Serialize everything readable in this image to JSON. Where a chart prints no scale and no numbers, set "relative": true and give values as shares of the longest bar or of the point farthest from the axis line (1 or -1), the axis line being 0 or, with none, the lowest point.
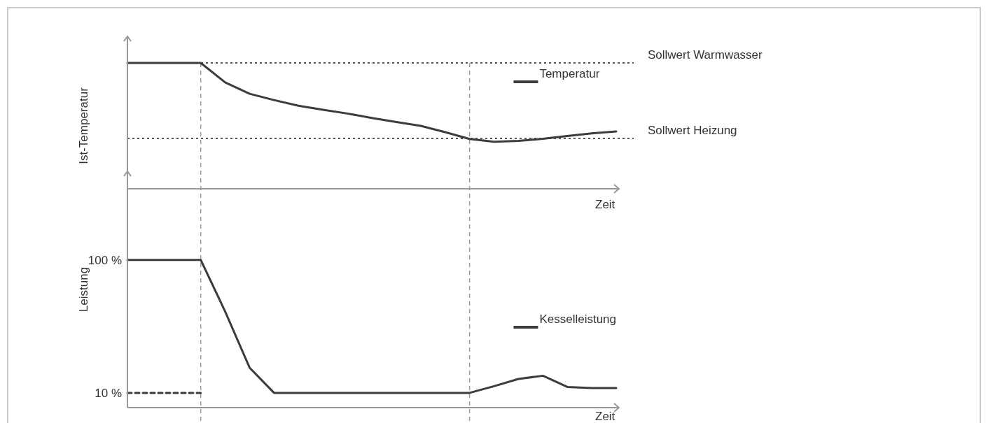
{
  "chart_data": [
    {
      "type": "line",
      "relative": true,
      "ylabel": "Ist-Temperatur",
      "xlabel": "Zeit",
      "categories": [
        null,
        null,
        null,
        null,
        null,
        null,
        null,
        null,
        null,
        null,
        null,
        null,
        null,
        null,
        null,
        null,
        null,
        null,
        null,
        null,
        null
      ],
      "tick_labels": false,
      "legend": "top right",
      "series": [
        {
          "name": "Temperatur",
          "color": "#3c3c3c",
          "values": [
            1,
            1,
            1,
            1,
            0.845,
            0.755,
            0.705,
            0.66,
            0.628,
            0.598,
            0.563,
            0.53,
            0.5,
            0.45,
            0.396,
            0.373,
            0.38,
            0.397,
            0.42,
            0.44,
            0.456
          ]
        }
      ],
      "ref_lines": [
        {
          "axis": "y",
          "value": 1,
          "label": "Sollwert Warmwasser",
          "line_style": "dotted",
          "color": "#222222"
        },
        {
          "axis": "y",
          "value": 0.4,
          "label": "Sollwert Heizung",
          "line_style": "dotted",
          "color": "#222222"
        }
      ]
    },
    {
      "type": "line",
      "ylabel": "Leistung",
      "xlabel": "Zeit",
      "categories": [
        null,
        null,
        null,
        null,
        null,
        null,
        null,
        null,
        null,
        null,
        null,
        null,
        null,
        null,
        null,
        null,
        null,
        null,
        null,
        null,
        null
      ],
      "ylim": [
        0,
        160
      ],
      "yticks": [
        {
          "value": 100,
          "label": "100 %"
        },
        {
          "value": 10,
          "label": "10 %"
        }
      ],
      "tick_labels": "y",
      "legend": "right",
      "series": [
        {
          "name": "Kesselleistung",
          "color": "#3c3c3c",
          "values": [
            100,
            100,
            100,
            100,
            65,
            27,
            10,
            10,
            10,
            10,
            10,
            10,
            10,
            10,
            10,
            14.5,
            19.4,
            21.6,
            14,
            13.3,
            13.3
          ]
        },
        {
          "color": "#3c3c3c",
          "line_style": "dashed",
          "values": [
            10,
            10,
            10,
            10,
            null,
            null,
            null,
            null,
            null,
            null,
            null,
            null,
            null,
            null,
            null,
            null,
            null,
            null,
            null,
            null,
            null
          ]
        }
      ]
    }
  ]
}
